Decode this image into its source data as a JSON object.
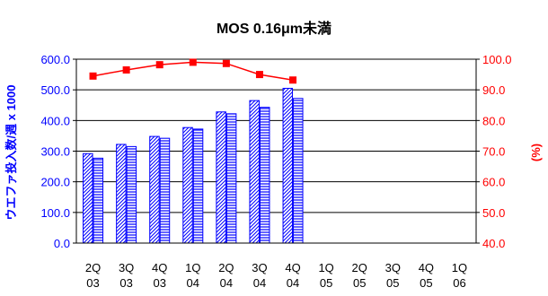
{
  "chart_data": {
    "type": "bar",
    "title": "MOS  0.16μm未満",
    "categories": [
      [
        "2Q",
        "03"
      ],
      [
        "3Q",
        "03"
      ],
      [
        "4Q",
        "03"
      ],
      [
        "1Q",
        "04"
      ],
      [
        "2Q",
        "04"
      ],
      [
        "3Q",
        "04"
      ],
      [
        "4Q",
        "04"
      ],
      [
        "1Q",
        "05"
      ],
      [
        "2Q",
        "05"
      ],
      [
        "3Q",
        "05"
      ],
      [
        "4Q",
        "05"
      ],
      [
        "1Q",
        "06"
      ]
    ],
    "left_axis": {
      "label": "ウエファ投入数/週 x 1000",
      "ylim": [
        0,
        600
      ],
      "ticks": [
        "0.0",
        "100.0",
        "200.0",
        "300.0",
        "400.0",
        "500.0",
        "600.0"
      ],
      "color": "#0000ff"
    },
    "right_axis": {
      "label": "(%)",
      "ylim": [
        40,
        100
      ],
      "ticks": [
        "40.0",
        "50.0",
        "60.0",
        "70.0",
        "80.0",
        "90.0",
        "100.0"
      ],
      "color": "#ff0000"
    },
    "bar_series": [
      {
        "values": [
          292,
          322,
          348,
          377,
          428,
          465,
          505
        ],
        "pattern": "diagonal",
        "color": "#0000ff"
      },
      {
        "values": [
          277,
          315,
          342,
          372,
          422,
          443,
          472
        ],
        "pattern": "horizontal",
        "color": "#0000ff"
      }
    ],
    "line_series": {
      "values": [
        94.5,
        96.5,
        98.2,
        99.0,
        98.6,
        95.0,
        93.2
      ],
      "color": "#ff0000",
      "marker": "square",
      "axis": "right"
    },
    "grid": true
  }
}
